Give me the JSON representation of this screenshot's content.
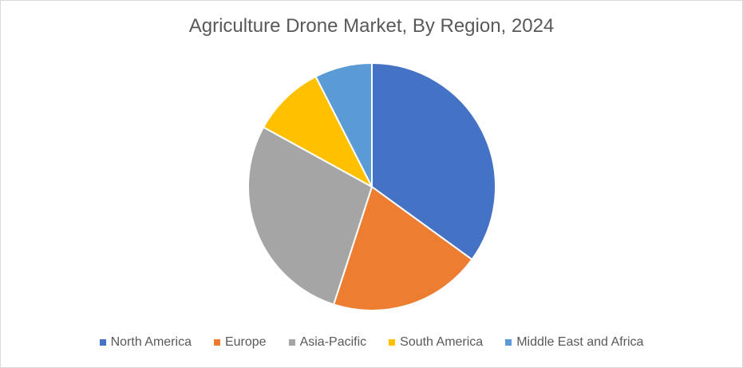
{
  "chart_data": {
    "type": "pie",
    "title": "Agriculture Drone Market, By Region, 2024",
    "categories": [
      "North America",
      "Europe",
      "Asia-Pacific",
      "South America",
      "Middle East and Africa"
    ],
    "values": [
      35,
      20,
      28,
      9.5,
      7.5
    ],
    "colors": [
      "#4472c4",
      "#ed7d31",
      "#a5a5a5",
      "#ffc000",
      "#5b9bd5"
    ],
    "start_angle_deg": 0,
    "direction": "clockwise",
    "legend_position": "bottom",
    "slice_border_color": "#ffffff"
  }
}
